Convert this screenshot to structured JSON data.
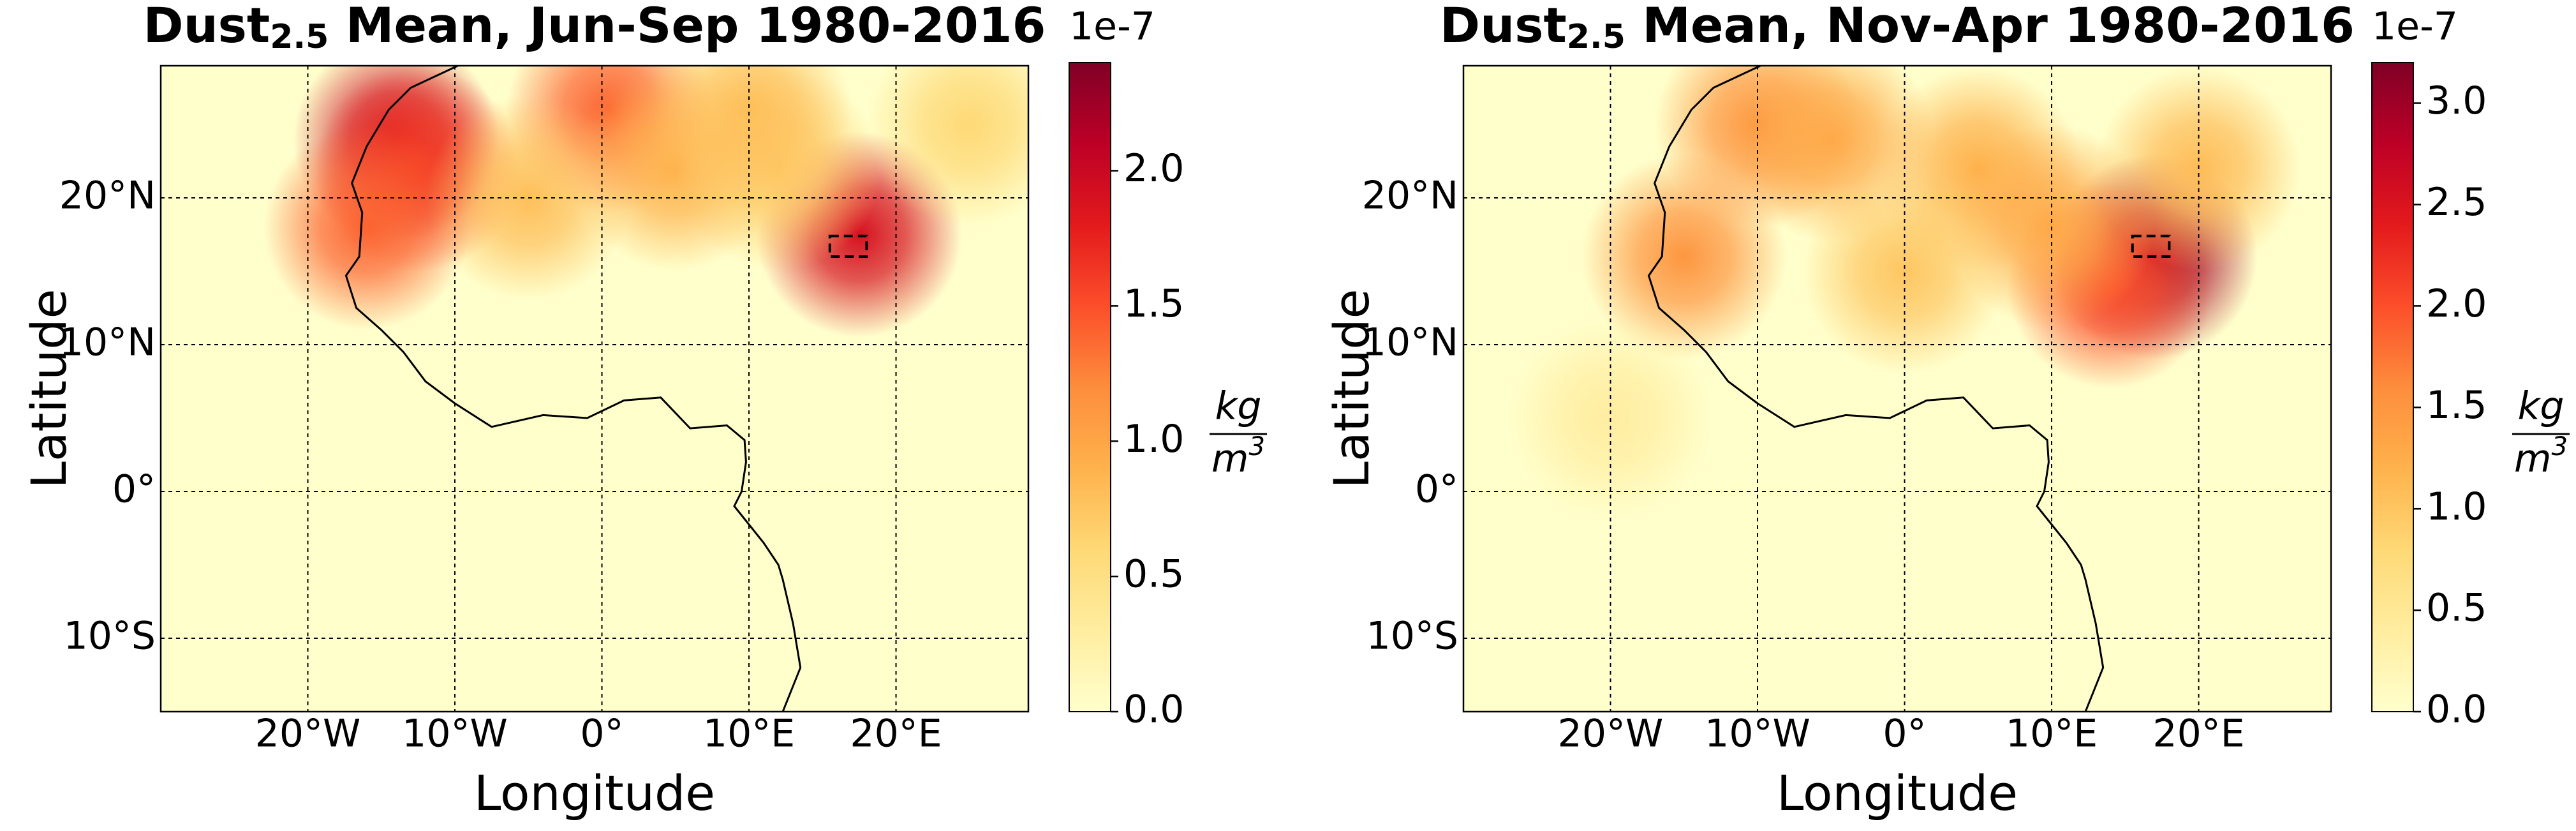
{
  "chart_data": [
    {
      "type": "map",
      "title_main": "Dust",
      "title_sub": "2.5",
      "title_rest": " Mean, Jun-Sep 1980-2016",
      "xlabel": "Longitude",
      "ylabel": "Latitude",
      "xlim": [
        -30,
        29
      ],
      "ylim": [
        -15,
        29
      ],
      "xticks": [
        {
          "value": -20,
          "label": "20°W"
        },
        {
          "value": -10,
          "label": "10°W"
        },
        {
          "value": 0,
          "label": "0°"
        },
        {
          "value": 10,
          "label": "10°E"
        },
        {
          "value": 20,
          "label": "20°E"
        }
      ],
      "yticks": [
        {
          "value": -10,
          "label": "10°S"
        },
        {
          "value": 0,
          "label": "0°"
        },
        {
          "value": 10,
          "label": "10°N"
        },
        {
          "value": 20,
          "label": "20°N"
        }
      ],
      "grid": true,
      "clim": [
        0,
        2.4
      ],
      "cticks": [
        {
          "value": 0,
          "label": "0.0"
        },
        0.5,
        {
          "value": 1,
          "label": "1.0"
        },
        1.5,
        {
          "value": 2,
          "label": "2.0"
        }
      ],
      "offset_label": "1e-7",
      "cbar_num": "kg",
      "cbar_den": "m",
      "cbar_exp": "3",
      "colormap": [
        "#ffffcc",
        "#ffeda0",
        "#fed976",
        "#feb24c",
        "#fd8d3c",
        "#fc4e2a",
        "#e31a1c",
        "#bd0026",
        "#800026"
      ],
      "box_lon": [
        15.5,
        18
      ],
      "box_lat": [
        16,
        17.4
      ],
      "hotspots": [
        {
          "lon": -14,
          "lat": 24,
          "value": 2.0
        },
        {
          "lon": -12.5,
          "lat": 22,
          "value": 1.6
        },
        {
          "lon": -16,
          "lat": 18,
          "value": 1.4
        },
        {
          "lon": 0.5,
          "lat": 26,
          "value": 1.4
        },
        {
          "lon": 17.5,
          "lat": 17.5,
          "value": 1.9
        },
        {
          "lon": 5,
          "lat": 22,
          "value": 0.9
        },
        {
          "lon": -5,
          "lat": 20,
          "value": 0.8
        },
        {
          "lon": 12,
          "lat": 22,
          "value": 0.7
        },
        {
          "lon": 25,
          "lat": 25,
          "value": 0.6
        },
        {
          "lon": 10,
          "lat": 26,
          "value": 0.8
        }
      ]
    },
    {
      "type": "map",
      "title_main": "Dust",
      "title_sub": "2.5",
      "title_rest": " Mean, Nov-Apr 1980-2016",
      "xlabel": "Longitude",
      "ylabel": "Latitude",
      "xlim": [
        -30,
        29
      ],
      "ylim": [
        -15,
        29
      ],
      "xticks": [
        {
          "value": -20,
          "label": "20°W"
        },
        {
          "value": -10,
          "label": "10°W"
        },
        {
          "value": 0,
          "label": "0°"
        },
        {
          "value": 10,
          "label": "10°E"
        },
        {
          "value": 20,
          "label": "20°E"
        }
      ],
      "yticks": [
        {
          "value": -10,
          "label": "10°S"
        },
        {
          "value": 0,
          "label": "0°"
        },
        {
          "value": 10,
          "label": "10°N"
        },
        {
          "value": 20,
          "label": "20°N"
        }
      ],
      "grid": true,
      "clim": [
        0,
        3.2
      ],
      "cticks": [
        {
          "value": 0,
          "label": "0.0"
        },
        0.5,
        {
          "value": 1,
          "label": "1.0"
        },
        1.5,
        {
          "value": 2,
          "label": "2.0"
        },
        2.5,
        {
          "value": 3,
          "label": "3.0"
        }
      ],
      "offset_label": "1e-7",
      "cbar_num": "kg",
      "cbar_den": "m",
      "cbar_exp": "3",
      "colormap": [
        "#ffffcc",
        "#ffeda0",
        "#fed976",
        "#feb24c",
        "#fd8d3c",
        "#fc4e2a",
        "#e31a1c",
        "#bd0026",
        "#800026"
      ],
      "box_lon": [
        15.5,
        18
      ],
      "box_lat": [
        16,
        17.4
      ],
      "hotspots": [
        {
          "lon": 17,
          "lat": 16,
          "value": 3.0
        },
        {
          "lon": 14,
          "lat": 14,
          "value": 2.0
        },
        {
          "lon": -15,
          "lat": 16,
          "value": 1.5
        },
        {
          "lon": -10,
          "lat": 25,
          "value": 1.5
        },
        {
          "lon": -5,
          "lat": 24,
          "value": 1.3
        },
        {
          "lon": 5,
          "lat": 22,
          "value": 1.2
        },
        {
          "lon": 10,
          "lat": 18,
          "value": 1.3
        },
        {
          "lon": 0,
          "lat": 15,
          "value": 1.0
        },
        {
          "lon": 20,
          "lat": 22,
          "value": 1.1
        },
        {
          "lon": -20,
          "lat": 5,
          "value": 0.4
        }
      ]
    }
  ]
}
